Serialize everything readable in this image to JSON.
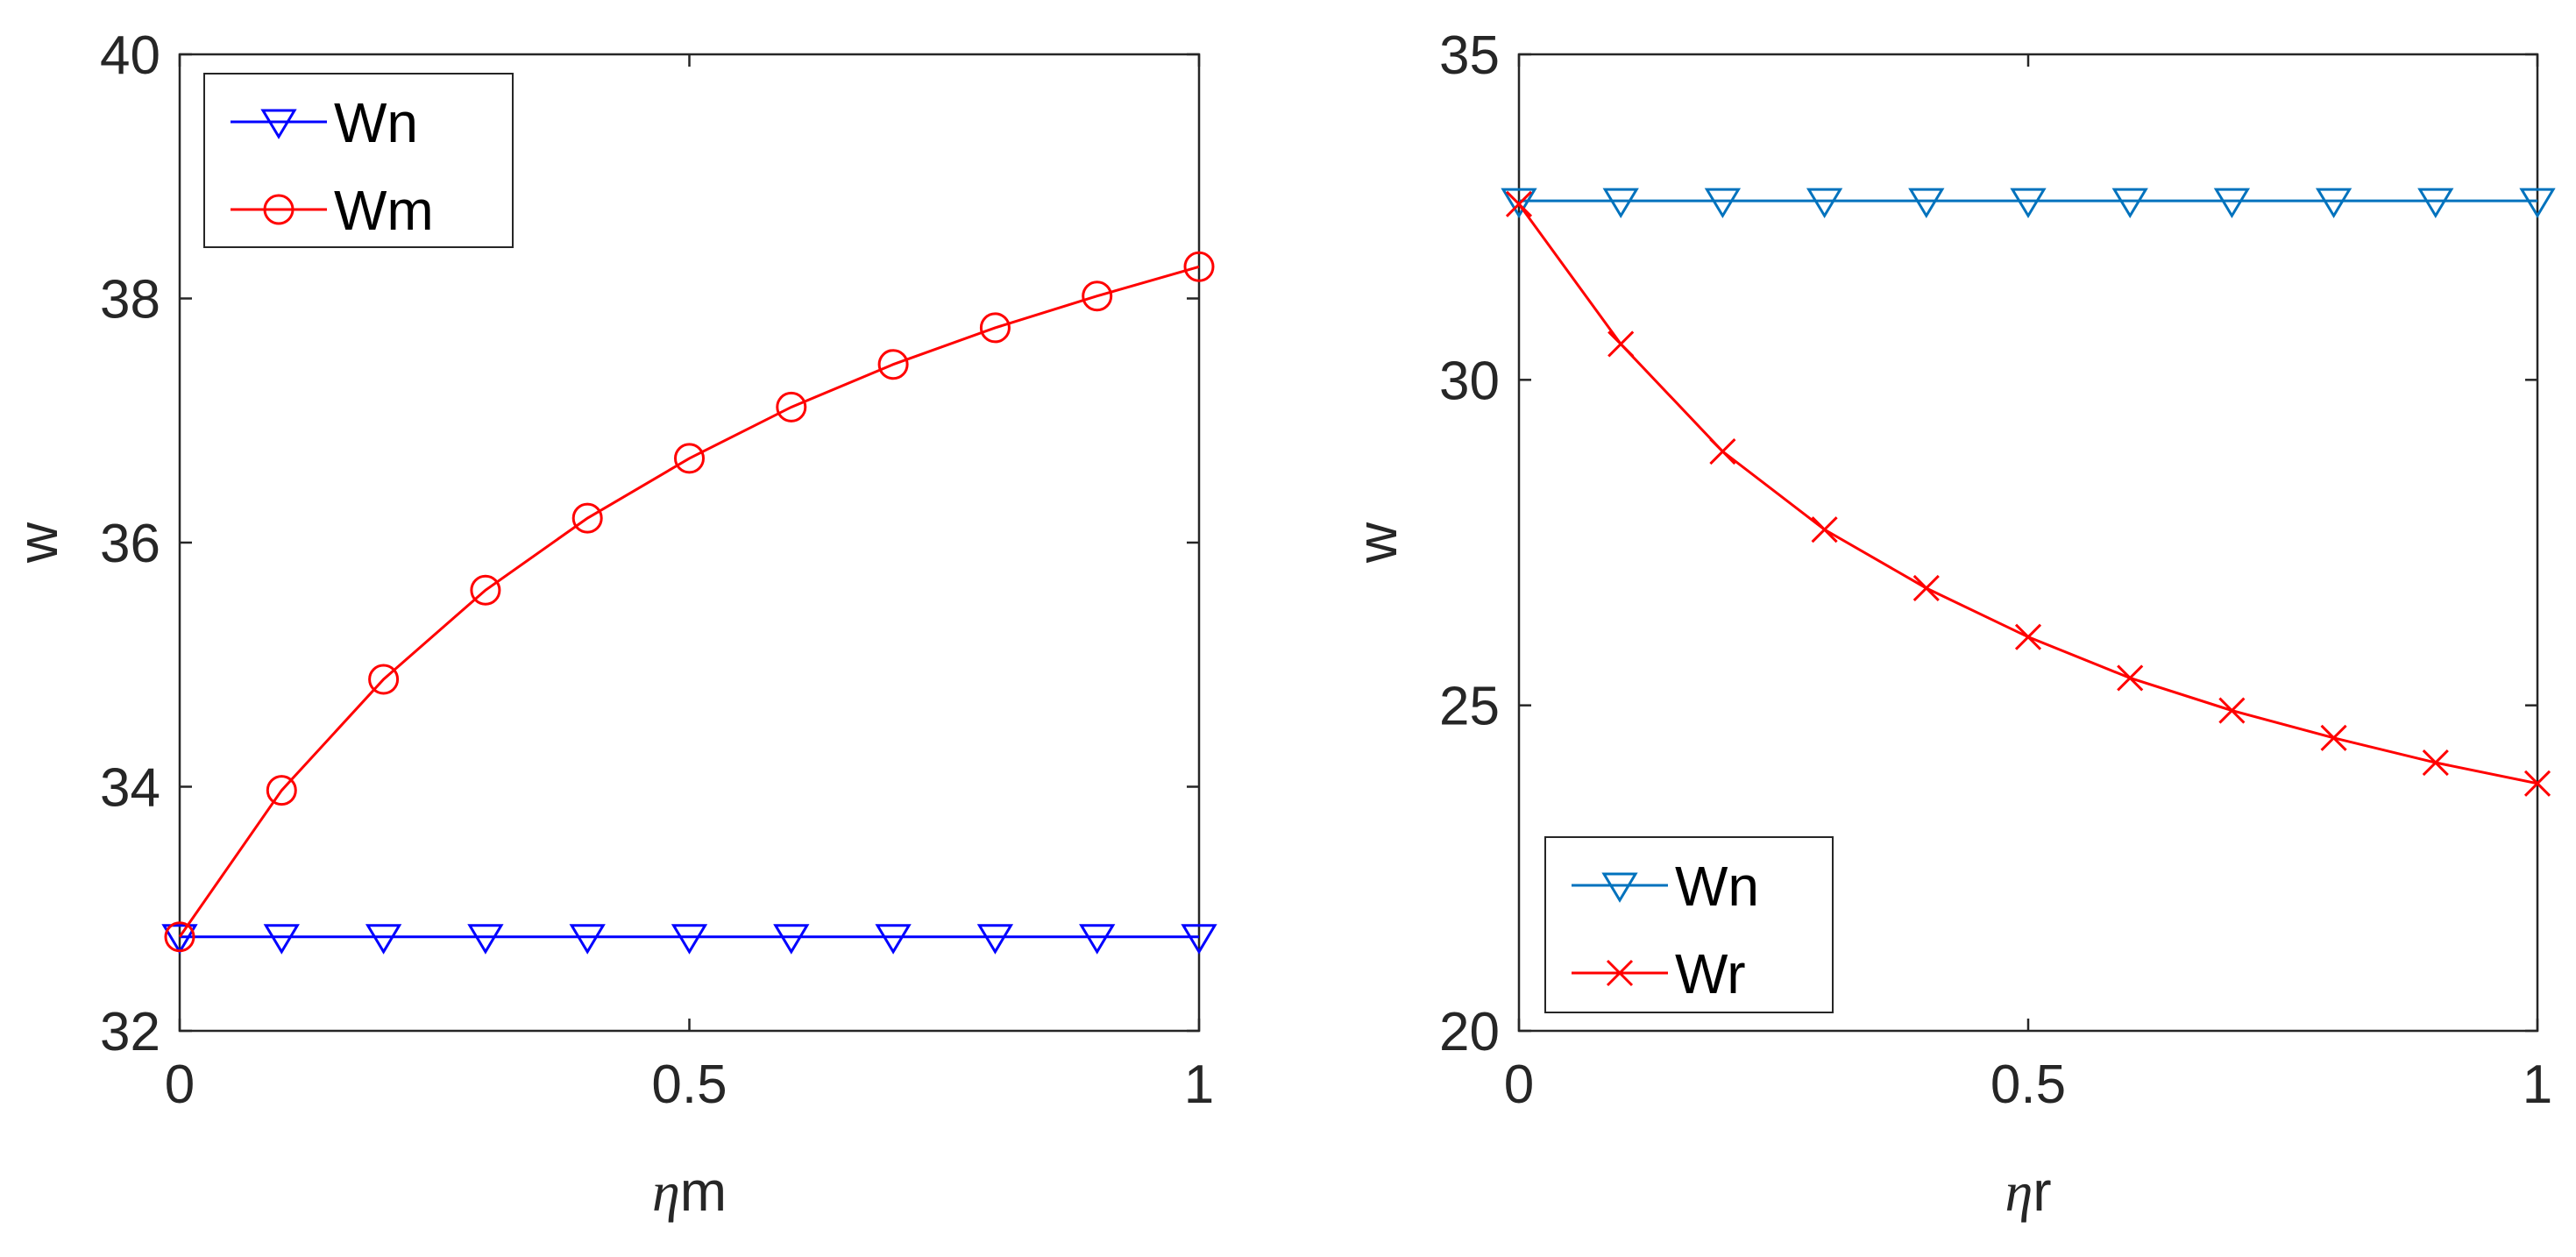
{
  "chart_data": [
    {
      "type": "line",
      "xlabel_symbol": "η",
      "xlabel_text": "m",
      "ylabel": "w",
      "xlim": [
        0,
        1
      ],
      "ylim": [
        32,
        40
      ],
      "xticks": [
        0,
        0.5,
        1
      ],
      "xtick_labels": [
        "0",
        "0.5",
        "1"
      ],
      "yticks": [
        32,
        34,
        36,
        38,
        40
      ],
      "ytick_labels": [
        "32",
        "34",
        "36",
        "38",
        "40"
      ],
      "legend_position": "top-left",
      "x": [
        0,
        0.1,
        0.2,
        0.3,
        0.4,
        0.5,
        0.6,
        0.7,
        0.8,
        0.9,
        1.0
      ],
      "series": [
        {
          "name": "Wn",
          "color": "#0000ff",
          "marker": "triangle-down",
          "values": [
            32.77,
            32.77,
            32.77,
            32.77,
            32.77,
            32.77,
            32.77,
            32.77,
            32.77,
            32.77,
            32.77
          ]
        },
        {
          "name": "Wm",
          "color": "#ff0000",
          "marker": "circle",
          "values": [
            32.77,
            33.97,
            34.88,
            35.61,
            36.2,
            36.69,
            37.11,
            37.46,
            37.76,
            38.02,
            38.26
          ]
        }
      ]
    },
    {
      "type": "line",
      "xlabel_symbol": "η",
      "xlabel_text": "r",
      "ylabel": "w",
      "xlim": [
        0,
        1
      ],
      "ylim": [
        20,
        35
      ],
      "xticks": [
        0,
        0.5,
        1
      ],
      "xtick_labels": [
        "0",
        "0.5",
        "1"
      ],
      "yticks": [
        20,
        25,
        30,
        35
      ],
      "ytick_labels": [
        "20",
        "25",
        "30",
        "35"
      ],
      "legend_position": "bottom-left",
      "x": [
        0,
        0.1,
        0.2,
        0.3,
        0.4,
        0.5,
        0.6,
        0.7,
        0.8,
        0.9,
        1.0
      ],
      "series": [
        {
          "name": "Wn",
          "color": "#0072bd",
          "marker": "triangle-down",
          "values": [
            32.75,
            32.75,
            32.75,
            32.75,
            32.75,
            32.75,
            32.75,
            32.75,
            32.75,
            32.75,
            32.75
          ]
        },
        {
          "name": "Wr",
          "color": "#ff0000",
          "marker": "x",
          "values": [
            32.7,
            30.55,
            28.9,
            27.7,
            26.8,
            26.05,
            25.42,
            24.92,
            24.5,
            24.12,
            23.8
          ]
        }
      ]
    }
  ]
}
